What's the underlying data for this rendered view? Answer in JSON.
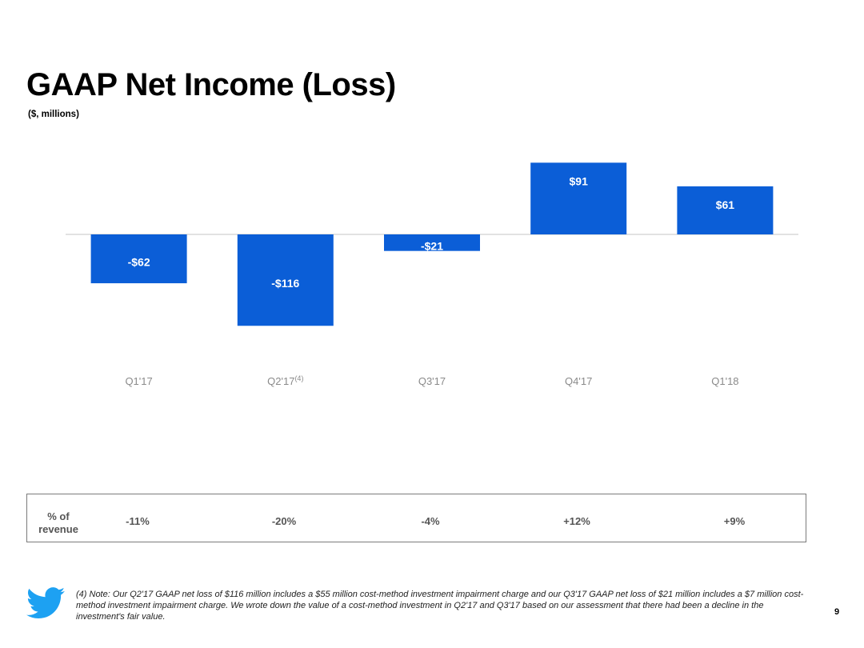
{
  "slide": {
    "title": "GAAP Net Income (Loss)",
    "subtitle": "($, millions)",
    "page_number": "9"
  },
  "chart_data": {
    "type": "bar",
    "title": "GAAP Net Income (Loss)",
    "ylabel": "($, millions)",
    "categories": [
      "Q1'17",
      "Q2'17",
      "Q3'17",
      "Q4'17",
      "Q1'18"
    ],
    "category_footnotes": [
      "",
      "(4)",
      "",
      "",
      ""
    ],
    "values": [
      -62,
      -116,
      -21,
      91,
      61
    ],
    "value_labels": [
      "-$62",
      "-$116",
      "-$21",
      "$91",
      "$61"
    ],
    "ylim": [
      -116,
      91
    ],
    "bar_color": "#0b5ed7",
    "zero_line_color": "#d9d9d9",
    "tick_color": "#8a8a8a"
  },
  "revenue_pct": {
    "label_line1": "% of",
    "label_line2": "revenue",
    "values": [
      "-11%",
      "-20%",
      "-4%",
      "+12%",
      "+9%"
    ]
  },
  "footnote": {
    "text": "(4)  Note: Our Q2'17 GAAP net loss of $116 million includes a $55 million cost-method investment impairment charge and our Q3'17 GAAP net loss of $21 million includes a $7 million cost-method investment impairment charge.  We wrote down the value of a cost-method investment in Q2'17 and Q3'17 based on our assessment that there had been a decline in the investment's fair value."
  },
  "logo": {
    "icon": "twitter-bird-icon",
    "color": "#1da1f2"
  }
}
